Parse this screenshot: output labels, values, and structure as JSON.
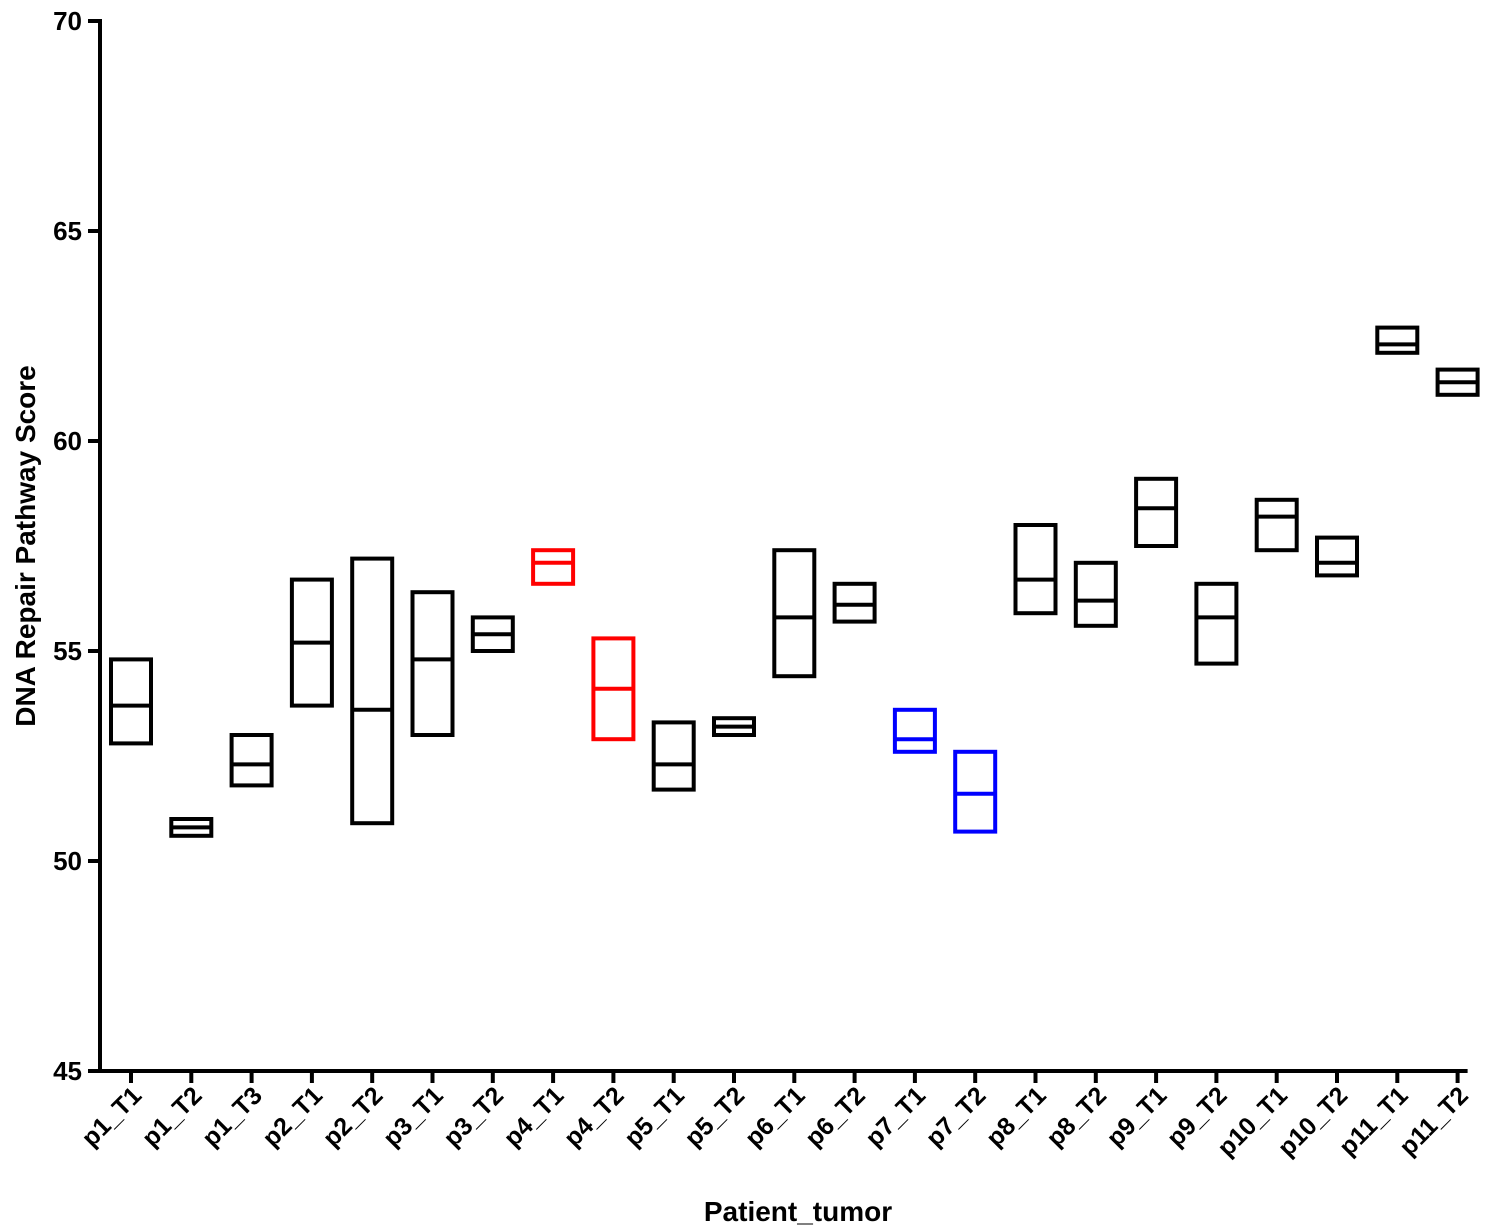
{
  "chart_data": {
    "type": "floating-bar",
    "title": "",
    "xlabel": "Patient_tumor",
    "ylabel": "DNA Repair Pathway  Score",
    "ylim": [
      45,
      70
    ],
    "yticks": [
      45,
      50,
      55,
      60,
      65,
      70
    ],
    "grid": false,
    "legend": "none",
    "boxes": [
      {
        "label": "p1_T1",
        "min": 52.8,
        "mid": 53.7,
        "max": 54.8,
        "color": "#000000"
      },
      {
        "label": "p1_T2",
        "min": 50.6,
        "mid": 50.8,
        "max": 51.0,
        "color": "#000000"
      },
      {
        "label": "p1_T3",
        "min": 51.8,
        "mid": 52.3,
        "max": 53.0,
        "color": "#000000"
      },
      {
        "label": "p2_T1",
        "min": 53.7,
        "mid": 55.2,
        "max": 56.7,
        "color": "#000000"
      },
      {
        "label": "p2_T2",
        "min": 50.9,
        "mid": 53.6,
        "max": 57.2,
        "color": "#000000"
      },
      {
        "label": "p3_T1",
        "min": 53.0,
        "mid": 54.8,
        "max": 56.4,
        "color": "#000000"
      },
      {
        "label": "p3_T2",
        "min": 55.0,
        "mid": 55.4,
        "max": 55.8,
        "color": "#000000"
      },
      {
        "label": "p4_T1",
        "min": 56.6,
        "mid": 57.1,
        "max": 57.4,
        "color": "#ff0000"
      },
      {
        "label": "p4_T2",
        "min": 52.9,
        "mid": 54.1,
        "max": 55.3,
        "color": "#ff0000"
      },
      {
        "label": "p5_T1",
        "min": 51.7,
        "mid": 52.3,
        "max": 53.3,
        "color": "#000000"
      },
      {
        "label": "p5_T2",
        "min": 53.0,
        "mid": 53.2,
        "max": 53.4,
        "color": "#000000"
      },
      {
        "label": "p6_T1",
        "min": 54.4,
        "mid": 55.8,
        "max": 57.4,
        "color": "#000000"
      },
      {
        "label": "p6_T2",
        "min": 55.7,
        "mid": 56.1,
        "max": 56.6,
        "color": "#000000"
      },
      {
        "label": "p7_T1",
        "min": 52.6,
        "mid": 52.9,
        "max": 53.6,
        "color": "#0000ff"
      },
      {
        "label": "p7_T2",
        "min": 50.7,
        "mid": 51.6,
        "max": 52.6,
        "color": "#0000ff"
      },
      {
        "label": "p8_T1",
        "min": 55.9,
        "mid": 56.7,
        "max": 58.0,
        "color": "#000000"
      },
      {
        "label": "p8_T2",
        "min": 55.6,
        "mid": 56.2,
        "max": 57.1,
        "color": "#000000"
      },
      {
        "label": "p9_T1",
        "min": 57.5,
        "mid": 58.4,
        "max": 59.1,
        "color": "#000000"
      },
      {
        "label": "p9_T2",
        "min": 54.7,
        "mid": 55.8,
        "max": 56.6,
        "color": "#000000"
      },
      {
        "label": "p10_T1",
        "min": 57.4,
        "mid": 58.2,
        "max": 58.6,
        "color": "#000000"
      },
      {
        "label": "p10_T2",
        "min": 56.8,
        "mid": 57.1,
        "max": 57.7,
        "color": "#000000"
      },
      {
        "label": "p11_T1",
        "min": 62.1,
        "mid": 62.3,
        "max": 62.7,
        "color": "#000000"
      },
      {
        "label": "p11_T2",
        "min": 61.1,
        "mid": 61.4,
        "max": 61.7,
        "color": "#000000"
      }
    ]
  }
}
